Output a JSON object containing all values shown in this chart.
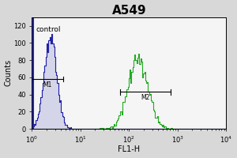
{
  "title": "A549",
  "xlabel": "FL1-H",
  "ylabel": "Counts",
  "control_label": "control",
  "m1_label": "M1",
  "m2_label": "M2",
  "bg_color": "#d8d8d8",
  "plot_bg_color": "#f5f5f5",
  "control_color": "#2222aa",
  "sample_color": "#22aa22",
  "ylim": [
    0,
    130
  ],
  "xlim_log_min": 0,
  "xlim_log_max": 4,
  "title_fontsize": 11,
  "axis_fontsize": 7,
  "tick_fontsize": 6,
  "ctrl_log_mean": 0.38,
  "ctrl_log_std": 0.13,
  "ctrl_peak_height": 110,
  "samp_log_mean": 2.18,
  "samp_log_std": 0.2,
  "samp_peak_height": 87,
  "m1_x1_log": 0.0,
  "m1_x2_log": 0.65,
  "m1_y": 58,
  "m2_x1_log": 1.82,
  "m2_x2_log": 2.85,
  "m2_y": 43,
  "ctrl_vline_log": 0.02,
  "yticks": [
    0,
    20,
    40,
    60,
    80,
    100,
    120
  ]
}
